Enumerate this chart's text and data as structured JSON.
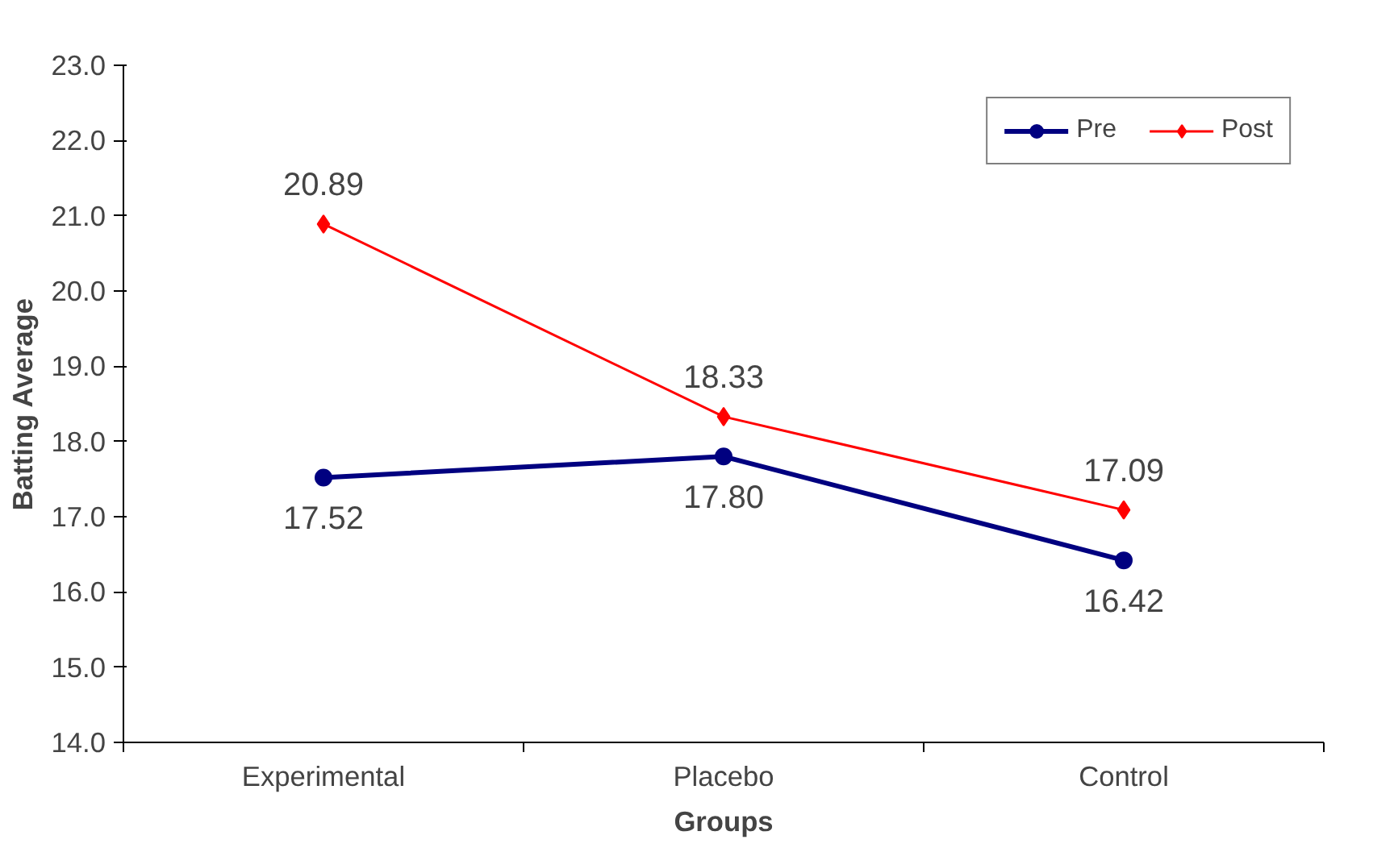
{
  "chart_data": {
    "type": "line",
    "xlabel": "Groups",
    "ylabel": "Batting Average",
    "categories": [
      "Experimental",
      "Placebo",
      "Control"
    ],
    "series": [
      {
        "name": "Pre",
        "color": "#000080",
        "values": [
          17.52,
          17.8,
          16.42
        ],
        "marker": "circle",
        "value_labels": [
          "17.52",
          "17.80",
          "16.42"
        ]
      },
      {
        "name": "Post",
        "color": "#ff0000",
        "values": [
          20.89,
          18.33,
          17.09
        ],
        "marker": "diamond",
        "value_labels": [
          "20.89",
          "18.33",
          "17.09"
        ]
      }
    ],
    "ylim": [
      14.0,
      23.0
    ],
    "yticks": [
      {
        "value": 14,
        "label": "14.0"
      },
      {
        "value": 15,
        "label": "15.0"
      },
      {
        "value": 16,
        "label": "16.0"
      },
      {
        "value": 17,
        "label": "17.0"
      },
      {
        "value": 18,
        "label": "18.0"
      },
      {
        "value": 19,
        "label": "19.0"
      },
      {
        "value": 20,
        "label": "20.0"
      },
      {
        "value": 21,
        "label": "21.0"
      },
      {
        "value": 22,
        "label": "22.0"
      },
      {
        "value": 23,
        "label": "23.0"
      }
    ],
    "grid": false,
    "legend": "top right",
    "line_style": "solid"
  }
}
